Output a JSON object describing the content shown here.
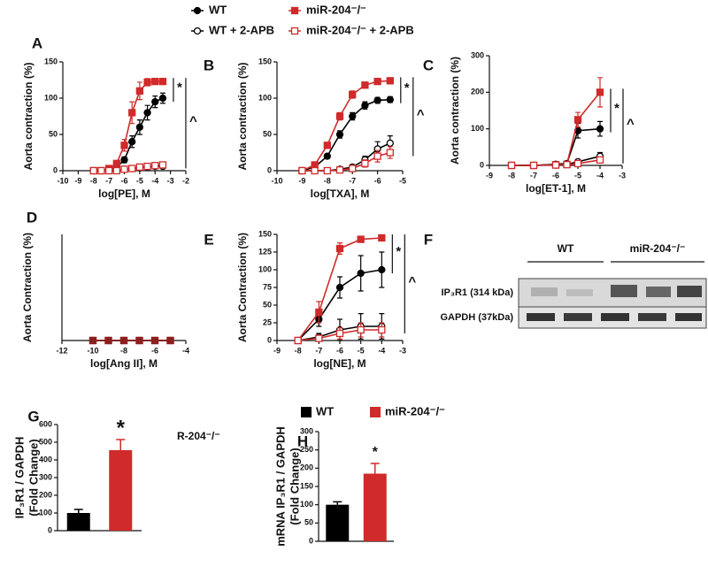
{
  "chart_data": [
    {
      "type": "line",
      "panel": "A",
      "xlabel": "log[PE], M",
      "ylabel": "Aorta contraction (%)",
      "xlim": [
        -10,
        -2
      ],
      "xticks": [
        -10,
        -9,
        -8,
        -7,
        -6,
        -5,
        -4,
        -3,
        -2
      ],
      "ylim": [
        0,
        150
      ],
      "yticks": [
        0,
        50,
        100,
        150
      ],
      "x": [
        -8,
        -7.5,
        -7,
        -6.5,
        -6,
        -5.5,
        -5,
        -4.5,
        -4,
        -3.5
      ],
      "series": [
        {
          "name": "WT",
          "color": "#000000",
          "marker": "circle",
          "filled": true,
          "values": [
            0,
            0,
            2,
            5,
            15,
            40,
            60,
            80,
            95,
            100
          ],
          "errors": [
            0,
            0,
            1,
            2,
            4,
            8,
            10,
            10,
            8,
            7
          ]
        },
        {
          "name": "miR-204⁻/⁻",
          "color": "#d02a2a",
          "marker": "square",
          "filled": true,
          "values": [
            0,
            0,
            3,
            10,
            35,
            80,
            110,
            122,
            123,
            123
          ],
          "errors": [
            0,
            0,
            1,
            3,
            8,
            15,
            12,
            5,
            4,
            4
          ]
        },
        {
          "name": "WT + 2-APB",
          "color": "#000000",
          "marker": "circle",
          "filled": false,
          "values": [
            0,
            0,
            0,
            0,
            2,
            3,
            4,
            5,
            6,
            6
          ],
          "errors": [
            0,
            0,
            0,
            0,
            1,
            1,
            2,
            2,
            2,
            2
          ]
        },
        {
          "name": "miR-204⁻/⁻ + 2-APB",
          "color": "#d02a2a",
          "marker": "square",
          "filled": false,
          "values": [
            0,
            0,
            0,
            0,
            2,
            3,
            5,
            6,
            7,
            8
          ],
          "errors": [
            0,
            0,
            0,
            0,
            1,
            1,
            2,
            2,
            2,
            2
          ]
        }
      ],
      "annotations": [
        "*",
        "^"
      ]
    },
    {
      "type": "line",
      "panel": "B",
      "xlabel": "log[TXA], M",
      "ylabel": "Aorta contraction (%)",
      "xlim": [
        -10,
        -5
      ],
      "xticks": [
        -10,
        -9,
        -8,
        -7,
        -6,
        -5
      ],
      "ylim": [
        0,
        150
      ],
      "yticks": [
        0,
        50,
        100,
        150
      ],
      "x": [
        -9,
        -8.5,
        -8,
        -7.5,
        -7,
        -6.5,
        -6,
        -5.5
      ],
      "series": [
        {
          "name": "WT",
          "color": "#000000",
          "marker": "circle",
          "filled": true,
          "values": [
            0,
            5,
            20,
            50,
            75,
            90,
            97,
            98
          ],
          "errors": [
            0,
            1,
            3,
            5,
            5,
            5,
            4,
            4
          ]
        },
        {
          "name": "miR-204⁻/⁻",
          "color": "#d02a2a",
          "marker": "square",
          "filled": true,
          "values": [
            0,
            8,
            35,
            75,
            105,
            118,
            123,
            124
          ],
          "errors": [
            0,
            2,
            4,
            5,
            5,
            4,
            4,
            4
          ]
        },
        {
          "name": "WT + 2-APB",
          "color": "#000000",
          "marker": "circle",
          "filled": false,
          "values": [
            0,
            0,
            0,
            2,
            5,
            15,
            30,
            38
          ],
          "errors": [
            0,
            0,
            0,
            1,
            3,
            5,
            10,
            10
          ]
        },
        {
          "name": "miR-204⁻/⁻ + 2-APB",
          "color": "#d02a2a",
          "marker": "square",
          "filled": false,
          "values": [
            0,
            0,
            0,
            1,
            3,
            10,
            20,
            25
          ],
          "errors": [
            0,
            0,
            0,
            1,
            2,
            5,
            8,
            8
          ]
        }
      ],
      "annotations": [
        "*",
        "^"
      ]
    },
    {
      "type": "line",
      "panel": "C",
      "xlabel": "log[ET-1], M",
      "ylabel": "Aorta contraction (%)",
      "xlim": [
        -9,
        -3
      ],
      "xticks": [
        -9,
        -8,
        -7,
        -6,
        -5,
        -4,
        -3
      ],
      "ylim": [
        0,
        300
      ],
      "yticks": [
        0,
        100,
        200,
        300
      ],
      "x": [
        -8,
        -7,
        -6,
        -5.5,
        -5,
        -4
      ],
      "series": [
        {
          "name": "WT",
          "color": "#000000",
          "marker": "circle",
          "filled": true,
          "values": [
            0,
            0,
            3,
            5,
            95,
            100
          ],
          "errors": [
            0,
            0,
            2,
            2,
            20,
            20
          ]
        },
        {
          "name": "miR-204⁻/⁻",
          "color": "#d02a2a",
          "marker": "square",
          "filled": true,
          "values": [
            0,
            0,
            2,
            3,
            125,
            200
          ],
          "errors": [
            0,
            0,
            1,
            2,
            20,
            40
          ]
        },
        {
          "name": "WT + 2-APB",
          "color": "#000000",
          "marker": "circle",
          "filled": false,
          "values": [
            0,
            0,
            2,
            3,
            10,
            25
          ],
          "errors": [
            0,
            0,
            1,
            1,
            5,
            10
          ]
        },
        {
          "name": "miR-204⁻/⁻ + 2-APB",
          "color": "#d02a2a",
          "marker": "square",
          "filled": false,
          "values": [
            0,
            0,
            1,
            2,
            5,
            15
          ],
          "errors": [
            0,
            0,
            1,
            1,
            3,
            6
          ]
        }
      ],
      "annotations": [
        "*",
        "^"
      ]
    },
    {
      "type": "line",
      "panel": "D",
      "xlabel": "log[Ang II], M",
      "ylabel": "Aorta Contraction (%)",
      "xlim": [
        -12,
        -4
      ],
      "xticks": [
        -12,
        -10,
        -8,
        -6,
        -4
      ],
      "ylim": [
        0,
        150
      ],
      "x": [
        -10,
        -9,
        -8,
        -7,
        -6,
        -5
      ],
      "series": [
        {
          "name": "WT",
          "color": "#000000",
          "marker": "circle",
          "filled": true,
          "values": [
            0,
            0,
            0,
            0,
            0,
            0
          ]
        },
        {
          "name": "WT + 2-APB",
          "color": "#000000",
          "marker": "circle",
          "filled": false,
          "values": [
            0,
            0,
            0,
            0,
            0,
            0
          ]
        },
        {
          "name": "miR-204⁻/⁻ + 2-APB",
          "color": "#d02a2a",
          "marker": "square",
          "filled": false,
          "values": [
            0,
            0,
            0,
            0,
            0,
            0
          ]
        },
        {
          "name": "miR-204⁻/⁻",
          "color": "#8a2020",
          "marker": "square",
          "filled": true,
          "values": [
            0,
            0,
            0,
            0,
            0,
            0
          ]
        }
      ]
    },
    {
      "type": "line",
      "panel": "E",
      "xlabel": "log[NE], M",
      "ylabel": "Aorta Contraction (%)",
      "xlim": [
        -9,
        -3
      ],
      "xticks": [
        -9,
        -8,
        -7,
        -6,
        -5,
        -4,
        -3
      ],
      "ylim": [
        0,
        150
      ],
      "yticks": [
        0,
        25,
        50,
        75,
        100,
        125,
        150
      ],
      "x": [
        -8,
        -7,
        -6,
        -5,
        -4
      ],
      "series": [
        {
          "name": "WT",
          "color": "#000000",
          "marker": "circle",
          "filled": true,
          "values": [
            0,
            30,
            75,
            95,
            100
          ],
          "errors": [
            0,
            10,
            15,
            25,
            25
          ]
        },
        {
          "name": "miR-204⁻/⁻",
          "color": "#d02a2a",
          "marker": "square",
          "filled": true,
          "values": [
            0,
            40,
            130,
            143,
            145
          ],
          "errors": [
            0,
            15,
            8,
            4,
            3
          ]
        },
        {
          "name": "WT + 2-APB",
          "color": "#000000",
          "marker": "circle",
          "filled": false,
          "values": [
            0,
            5,
            15,
            20,
            20
          ],
          "errors": [
            0,
            5,
            15,
            18,
            18
          ]
        },
        {
          "name": "miR-204⁻/⁻ + 2-APB",
          "color": "#d02a2a",
          "marker": "square",
          "filled": false,
          "values": [
            0,
            3,
            10,
            15,
            15
          ],
          "errors": [
            0,
            3,
            8,
            10,
            10
          ]
        }
      ],
      "annotations": [
        "*",
        "^"
      ]
    },
    {
      "type": "blot",
      "panel": "F",
      "columns": [
        "WT",
        "miR-204⁻/⁻"
      ],
      "rows": [
        "IP₃R1 (314 kDa)",
        "GAPDH (37kDa)"
      ]
    },
    {
      "type": "bar",
      "panel": "G",
      "ylabel": [
        "IP₃R1 / GAPDH",
        "(Fold Change)"
      ],
      "categories": [
        null,
        null
      ],
      "values": [
        100,
        455
      ],
      "errors": [
        20,
        60
      ],
      "colors": [
        "#000000",
        "#d02a2a"
      ],
      "ylim": [
        0,
        600
      ],
      "yticks": [
        0,
        100,
        200,
        300,
        400,
        500,
        600
      ],
      "annotations": [
        "*"
      ],
      "text": "R-204⁻/⁻"
    },
    {
      "type": "bar",
      "panel": "H",
      "ylabel": [
        "mRNA IP₃R1 / GAPDH",
        "(Fold Change)"
      ],
      "categories": [
        null,
        null
      ],
      "values": [
        100,
        185
      ],
      "errors": [
        8,
        28
      ],
      "colors": [
        "#000000",
        "#d02a2a"
      ],
      "ylim": [
        0,
        300
      ],
      "yticks": [
        0,
        50,
        100,
        150,
        200,
        250,
        300
      ],
      "annotations": [
        "*"
      ],
      "legend": [
        "WT",
        "miR-204⁻/⁻"
      ]
    }
  ]
}
